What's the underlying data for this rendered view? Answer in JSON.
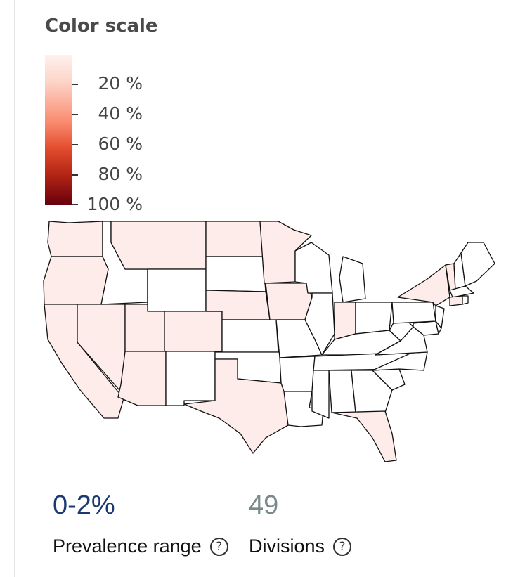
{
  "legend": {
    "title": "Color scale",
    "ticks": [
      "20 %",
      "40 %",
      "60 %",
      "80 %",
      "100 %"
    ],
    "gradient_colors": [
      "#fff1ee",
      "#fdd4c8",
      "#f98a6e",
      "#e34d2e",
      "#b22414",
      "#67000d"
    ]
  },
  "map": {
    "region": "Contiguous United States",
    "fill_low": "#fdecea",
    "fill_none": "#ffffff",
    "shaded_states": [
      "WA",
      "OR",
      "CA",
      "NV",
      "UT",
      "AZ",
      "MT",
      "CO",
      "ND",
      "NE",
      "MN",
      "IA",
      "IN",
      "TX",
      "FL",
      "NY",
      "CT",
      "VT"
    ]
  },
  "stats": {
    "prevalence_value": "0-2%",
    "prevalence_label": "Prevalence range",
    "divisions_value": "49",
    "divisions_label": "Divisions"
  },
  "colors": {
    "accent": "#1c3a72",
    "muted": "#7a8a8a"
  },
  "icons": {
    "help": "question-circle-icon"
  }
}
